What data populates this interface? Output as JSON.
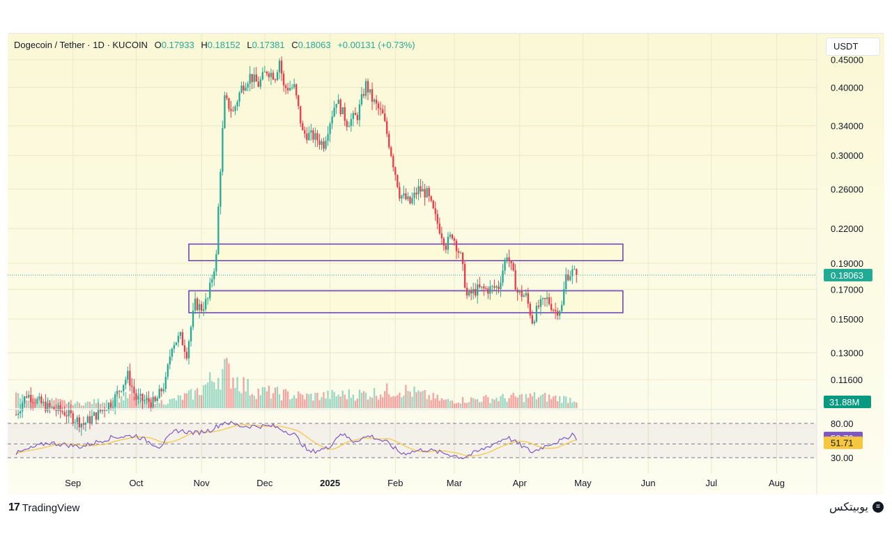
{
  "header": {
    "symbol": "Dogecoin / Tether · 1D · KUCOIN",
    "open_label": "O",
    "open_value": "0.17933",
    "high_label": "H",
    "high_value": "0.18152",
    "low_label": "L",
    "low_value": "0.17381",
    "close_label": "C",
    "close_value": "0.18063",
    "change": "+0.00131 (+0.73%)"
  },
  "unit_label": "USDT",
  "brand": {
    "tradingview": "TradingView",
    "watermark": "یوبیتکس"
  },
  "icons": {
    "logo": "tradingview-logo-icon",
    "watermark": "ubitex-logo-icon"
  },
  "colors": {
    "up": "#22ab94",
    "down": "#f23645",
    "rsi": "#7e57c2",
    "rsi_ma": "#f5c73e",
    "zone": "#673ab7",
    "background": "#fbf8d6"
  },
  "chart_data": {
    "type": "candlestick",
    "y_scale": "log",
    "price_ticks": [
      "0.45000",
      "0.40000",
      "0.34000",
      "0.30000",
      "0.26000",
      "0.22000",
      "0.19000",
      "0.17000",
      "0.15000",
      "0.13000",
      "0.11600"
    ],
    "last_price": "0.18063",
    "last_volume": "31.88M",
    "x_tick_labels": [
      "Sep",
      "Oct",
      "Nov",
      "Dec",
      "2025",
      "Feb",
      "Mar",
      "Apr",
      "May",
      "Jun",
      "Jul",
      "Aug"
    ],
    "zones": [
      {
        "from": "2024-10-26",
        "to": "2025-05-20",
        "low": 0.192,
        "high": 0.206
      },
      {
        "from": "2024-10-26",
        "to": "2025-05-20",
        "low": 0.154,
        "high": 0.169
      }
    ],
    "anchors": [
      [
        "2024-08-05",
        0.1
      ],
      [
        "2024-08-10",
        0.109
      ],
      [
        "2024-08-20",
        0.103
      ],
      [
        "2024-08-28",
        0.101
      ],
      [
        "2024-09-06",
        0.096
      ],
      [
        "2024-09-12",
        0.1
      ],
      [
        "2024-09-20",
        0.106
      ],
      [
        "2024-09-27",
        0.118
      ],
      [
        "2024-10-01",
        0.107
      ],
      [
        "2024-10-10",
        0.105
      ],
      [
        "2024-10-15",
        0.115
      ],
      [
        "2024-10-18",
        0.135
      ],
      [
        "2024-10-22",
        0.139
      ],
      [
        "2024-10-25",
        0.13
      ],
      [
        "2024-10-29",
        0.16
      ],
      [
        "2024-11-01",
        0.157
      ],
      [
        "2024-11-04",
        0.163
      ],
      [
        "2024-11-08",
        0.195
      ],
      [
        "2024-11-10",
        0.285
      ],
      [
        "2024-11-12",
        0.38
      ],
      [
        "2024-11-16",
        0.36
      ],
      [
        "2024-11-20",
        0.4
      ],
      [
        "2024-11-24",
        0.42
      ],
      [
        "2024-11-28",
        0.405
      ],
      [
        "2024-12-02",
        0.43
      ],
      [
        "2024-12-06",
        0.42
      ],
      [
        "2024-12-08",
        0.45
      ],
      [
        "2024-12-10",
        0.4
      ],
      [
        "2024-12-15",
        0.4
      ],
      [
        "2024-12-19",
        0.33
      ],
      [
        "2024-12-24",
        0.325
      ],
      [
        "2024-12-29",
        0.315
      ],
      [
        "2025-01-04",
        0.38
      ],
      [
        "2025-01-09",
        0.345
      ],
      [
        "2025-01-14",
        0.355
      ],
      [
        "2025-01-18",
        0.405
      ],
      [
        "2025-01-21",
        0.38
      ],
      [
        "2025-01-26",
        0.355
      ],
      [
        "2025-01-31",
        0.29
      ],
      [
        "2025-02-03",
        0.255
      ],
      [
        "2025-02-08",
        0.245
      ],
      [
        "2025-02-12",
        0.26
      ],
      [
        "2025-02-16",
        0.255
      ],
      [
        "2025-02-20",
        0.23
      ],
      [
        "2025-02-25",
        0.205
      ],
      [
        "2025-02-28",
        0.215
      ],
      [
        "2025-03-04",
        0.195
      ],
      [
        "2025-03-07",
        0.165
      ],
      [
        "2025-03-12",
        0.17
      ],
      [
        "2025-03-17",
        0.17
      ],
      [
        "2025-03-22",
        0.172
      ],
      [
        "2025-03-26",
        0.198
      ],
      [
        "2025-03-31",
        0.168
      ],
      [
        "2025-04-04",
        0.165
      ],
      [
        "2025-04-07",
        0.149
      ],
      [
        "2025-04-10",
        0.158
      ],
      [
        "2025-04-14",
        0.163
      ],
      [
        "2025-04-18",
        0.155
      ],
      [
        "2025-04-21",
        0.158
      ],
      [
        "2025-04-23",
        0.18
      ],
      [
        "2025-04-26",
        0.183
      ],
      [
        "2025-04-28",
        0.18063
      ]
    ],
    "volume_profile": [
      [
        "2024-08-05",
        0.8
      ],
      [
        "2024-09-05",
        0.3
      ],
      [
        "2024-09-28",
        0.8
      ],
      [
        "2024-10-15",
        0.4
      ],
      [
        "2024-10-29",
        1.0
      ],
      [
        "2024-11-12",
        2.6
      ],
      [
        "2024-11-25",
        1.2
      ],
      [
        "2024-12-20",
        0.8
      ],
      [
        "2025-01-20",
        1.0
      ],
      [
        "2025-02-03",
        1.3
      ],
      [
        "2025-02-25",
        0.5
      ],
      [
        "2025-03-10",
        0.6
      ],
      [
        "2025-04-08",
        0.8
      ],
      [
        "2025-04-28",
        0.6
      ]
    ],
    "rsi": {
      "ticks": [
        "80.00",
        "30.00"
      ],
      "value": "58.70",
      "ma_value": "51.71",
      "anchors": [
        [
          "2024-08-05",
          36
        ],
        [
          "2024-08-20",
          52
        ],
        [
          "2024-09-05",
          46
        ],
        [
          "2024-09-20",
          60
        ],
        [
          "2024-10-01",
          62
        ],
        [
          "2024-10-12",
          46
        ],
        [
          "2024-10-20",
          70
        ],
        [
          "2024-10-29",
          66
        ],
        [
          "2024-11-05",
          70
        ],
        [
          "2024-11-12",
          82
        ],
        [
          "2024-11-20",
          76
        ],
        [
          "2024-12-05",
          76
        ],
        [
          "2024-12-15",
          64
        ],
        [
          "2024-12-22",
          38
        ],
        [
          "2024-12-31",
          44
        ],
        [
          "2025-01-06",
          66
        ],
        [
          "2025-01-12",
          54
        ],
        [
          "2025-01-20",
          62
        ],
        [
          "2025-01-28",
          52
        ],
        [
          "2025-02-04",
          36
        ],
        [
          "2025-02-15",
          42
        ],
        [
          "2025-02-25",
          36
        ],
        [
          "2025-03-05",
          30
        ],
        [
          "2025-03-13",
          40
        ],
        [
          "2025-03-26",
          60
        ],
        [
          "2025-04-07",
          38
        ],
        [
          "2025-04-15",
          50
        ],
        [
          "2025-04-22",
          56
        ],
        [
          "2025-04-26",
          65
        ],
        [
          "2025-04-28",
          58.7
        ]
      ]
    }
  }
}
